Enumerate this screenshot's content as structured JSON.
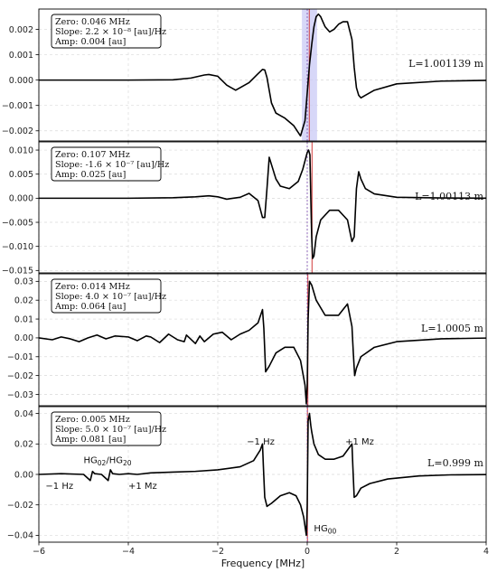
{
  "figure": {
    "xlabel": "Frequency [MHz]",
    "x_ticks": [
      -6,
      -4,
      -2,
      0,
      2,
      4
    ]
  },
  "chart_data": [
    {
      "type": "line",
      "panel": 1,
      "xlim": [
        -6,
        4
      ],
      "ylim": [
        -0.0024,
        0.0028
      ],
      "y_ticks": [
        -0.002,
        -0.001,
        0.0,
        0.001,
        0.002
      ],
      "y_decimals": 3,
      "grid": true,
      "info": [
        "Zero: 0.046 MHz",
        "Slope: 2.2 × 10⁻⁸ [au]/Hz",
        "Amp: 0.004 [au]"
      ],
      "length_label": "L=1.001139 m",
      "zero_line_x": 0.046,
      "shaded_band": [
        -0.12,
        0.22
      ],
      "x": [
        -6,
        -4,
        -3,
        -2.6,
        -2.3,
        -2.2,
        -2.0,
        -1.8,
        -1.6,
        -1.3,
        -1.1,
        -1.0,
        -0.95,
        -0.9,
        -0.85,
        -0.8,
        -0.7,
        -0.6,
        -0.5,
        -0.3,
        -0.15,
        -0.05,
        0.0,
        0.05,
        0.1,
        0.15,
        0.2,
        0.25,
        0.3,
        0.4,
        0.5,
        0.6,
        0.7,
        0.8,
        0.9,
        1.0,
        1.05,
        1.1,
        1.15,
        1.2,
        1.3,
        1.5,
        2.0,
        3.0,
        4.0
      ],
      "y": [
        0.0,
        0.0,
        1e-05,
        8e-05,
        0.0002,
        0.00022,
        0.00015,
        -0.0002,
        -0.0004,
        -0.0001,
        0.00025,
        0.00042,
        0.0004,
        0.0001,
        -0.0004,
        -0.0009,
        -0.0013,
        -0.0014,
        -0.0015,
        -0.0018,
        -0.0022,
        -0.0016,
        -0.0005,
        0.0006,
        0.0014,
        0.0021,
        0.0025,
        0.0026,
        0.0025,
        0.0021,
        0.0019,
        0.002,
        0.0022,
        0.0023,
        0.0023,
        0.0016,
        0.0005,
        -0.0003,
        -0.0006,
        -0.0007,
        -0.0006,
        -0.0004,
        -0.00015,
        -4e-05,
        -1e-05
      ]
    },
    {
      "type": "line",
      "panel": 2,
      "xlim": [
        -6,
        4
      ],
      "ylim": [
        -0.0155,
        0.0117
      ],
      "y_ticks": [
        -0.015,
        -0.01,
        -0.005,
        0.0,
        0.005,
        0.01
      ],
      "y_decimals": 3,
      "grid": true,
      "info": [
        "Zero: 0.107 MHz",
        "Slope: -1.6 × 10⁻⁷ [au]/Hz",
        "Amp: 0.025 [au]"
      ],
      "length_label": "L=1.00113 m",
      "zero_line_x": 0.107,
      "x": [
        -6,
        -4,
        -3,
        -2.5,
        -2.2,
        -2.0,
        -1.8,
        -1.5,
        -1.3,
        -1.1,
        -1.0,
        -0.95,
        -0.9,
        -0.85,
        -0.8,
        -0.7,
        -0.6,
        -0.4,
        -0.2,
        -0.1,
        0.0,
        0.03,
        0.06,
        0.08,
        0.1,
        0.12,
        0.15,
        0.2,
        0.3,
        0.5,
        0.7,
        0.9,
        1.0,
        1.05,
        1.1,
        1.15,
        1.2,
        1.3,
        1.5,
        2.0,
        3.0,
        4.0
      ],
      "y": [
        0.0,
        0.0,
        0.0001,
        0.0003,
        0.0005,
        0.0003,
        -0.0002,
        0.0002,
        0.001,
        -0.0005,
        -0.004,
        -0.004,
        0.002,
        0.0085,
        0.007,
        0.004,
        0.0025,
        0.002,
        0.0035,
        0.006,
        0.0095,
        0.01,
        0.009,
        0.0,
        -0.008,
        -0.0125,
        -0.012,
        -0.008,
        -0.0045,
        -0.0025,
        -0.0025,
        -0.0045,
        -0.009,
        -0.008,
        0.002,
        0.0055,
        0.004,
        0.002,
        0.0009,
        0.0002,
        5e-05,
        1e-05
      ]
    },
    {
      "type": "line",
      "panel": 3,
      "xlim": [
        -6,
        4
      ],
      "ylim": [
        -0.036,
        0.034
      ],
      "y_ticks": [
        -0.03,
        -0.02,
        -0.01,
        0.0,
        0.01,
        0.02,
        0.03
      ],
      "y_decimals": 2,
      "grid": true,
      "info": [
        "Zero: 0.014 MHz",
        "Slope: 4.0 × 10⁻⁷ [au]/Hz",
        "Amp: 0.064 [au]"
      ],
      "length_label": "L=1.0005 m",
      "zero_line_x": 0.014,
      "x": [
        -6,
        -5.7,
        -5.5,
        -5.3,
        -5.1,
        -4.9,
        -4.7,
        -4.5,
        -4.3,
        -4.0,
        -3.8,
        -3.6,
        -3.5,
        -3.3,
        -3.1,
        -2.9,
        -2.75,
        -2.7,
        -2.5,
        -2.4,
        -2.3,
        -2.1,
        -2.0,
        -1.9,
        -1.7,
        -1.5,
        -1.3,
        -1.1,
        -1.0,
        -0.97,
        -0.93,
        -0.85,
        -0.7,
        -0.5,
        -0.3,
        -0.15,
        -0.05,
        -0.02,
        0.0,
        0.02,
        0.05,
        0.1,
        0.2,
        0.4,
        0.7,
        0.9,
        1.0,
        1.03,
        1.06,
        1.1,
        1.2,
        1.5,
        2.0,
        3.0,
        4.0
      ],
      "y": [
        0.0,
        -0.001,
        0.0005,
        -0.0005,
        -0.002,
        0.0,
        0.0015,
        -0.0005,
        0.001,
        0.0005,
        -0.0015,
        0.001,
        0.0005,
        -0.0025,
        0.002,
        -0.001,
        -0.002,
        0.0015,
        -0.003,
        0.001,
        -0.002,
        0.002,
        0.0025,
        0.003,
        -0.001,
        0.002,
        0.004,
        0.008,
        0.015,
        0.005,
        -0.018,
        -0.015,
        -0.008,
        -0.005,
        -0.005,
        -0.012,
        -0.025,
        -0.035,
        -0.025,
        0.01,
        0.03,
        0.028,
        0.02,
        0.012,
        0.012,
        0.018,
        0.006,
        -0.008,
        -0.02,
        -0.016,
        -0.01,
        -0.005,
        -0.002,
        -0.0005,
        -0.0001
      ]
    },
    {
      "type": "line",
      "panel": 4,
      "xlim": [
        -6,
        4
      ],
      "ylim": [
        -0.0445,
        0.0445
      ],
      "y_ticks": [
        -0.04,
        -0.02,
        0.0,
        0.02,
        0.04
      ],
      "y_decimals": 2,
      "grid": true,
      "info": [
        "Zero: 0.005 MHz",
        "Slope: 5.0 × 10⁻⁷ [au]/Hz",
        "Amp: 0.081 [au]"
      ],
      "length_label": "L=0.999 m",
      "zero_line_x": 0.005,
      "annotations": {
        "minus_hz_left": "−1 Hz",
        "plus_mz_left": "+1 Mz",
        "hg02": "HG",
        "hg02_sub": "02",
        "hg_sep": "/HG",
        "hg20_sub": "20",
        "minus_hz_right": "−1 Hz",
        "plus_mz_right": "+1 Mz",
        "hg00": "HG",
        "hg00_sub": "00"
      },
      "x": [
        -6,
        -5.5,
        -5.0,
        -4.85,
        -4.8,
        -4.75,
        -4.6,
        -4.45,
        -4.4,
        -4.35,
        -4.2,
        -4.0,
        -3.8,
        -3.5,
        -3.0,
        -2.5,
        -2.0,
        -1.5,
        -1.2,
        -1.05,
        -1.0,
        -0.98,
        -0.95,
        -0.9,
        -0.8,
        -0.6,
        -0.4,
        -0.25,
        -0.15,
        -0.08,
        -0.04,
        -0.02,
        0.0,
        0.02,
        0.05,
        0.08,
        0.1,
        0.15,
        0.25,
        0.4,
        0.6,
        0.8,
        0.95,
        1.0,
        1.02,
        1.05,
        1.1,
        1.2,
        1.4,
        1.8,
        2.5,
        3.2,
        4.0
      ],
      "y": [
        0.0,
        0.0005,
        0.0,
        -0.004,
        0.002,
        0.0005,
        0.0,
        -0.004,
        0.003,
        0.0005,
        0.0,
        0.0005,
        0.0,
        0.001,
        0.0015,
        0.002,
        0.003,
        0.005,
        0.009,
        0.016,
        0.02,
        0.005,
        -0.015,
        -0.021,
        -0.019,
        -0.014,
        -0.012,
        -0.014,
        -0.02,
        -0.028,
        -0.036,
        -0.04,
        -0.02,
        0.035,
        0.04,
        0.032,
        0.028,
        0.02,
        0.013,
        0.01,
        0.01,
        0.012,
        0.018,
        0.02,
        0.005,
        -0.015,
        -0.014,
        -0.009,
        -0.006,
        -0.003,
        -0.001,
        -0.0003,
        -0.0001
      ]
    }
  ]
}
